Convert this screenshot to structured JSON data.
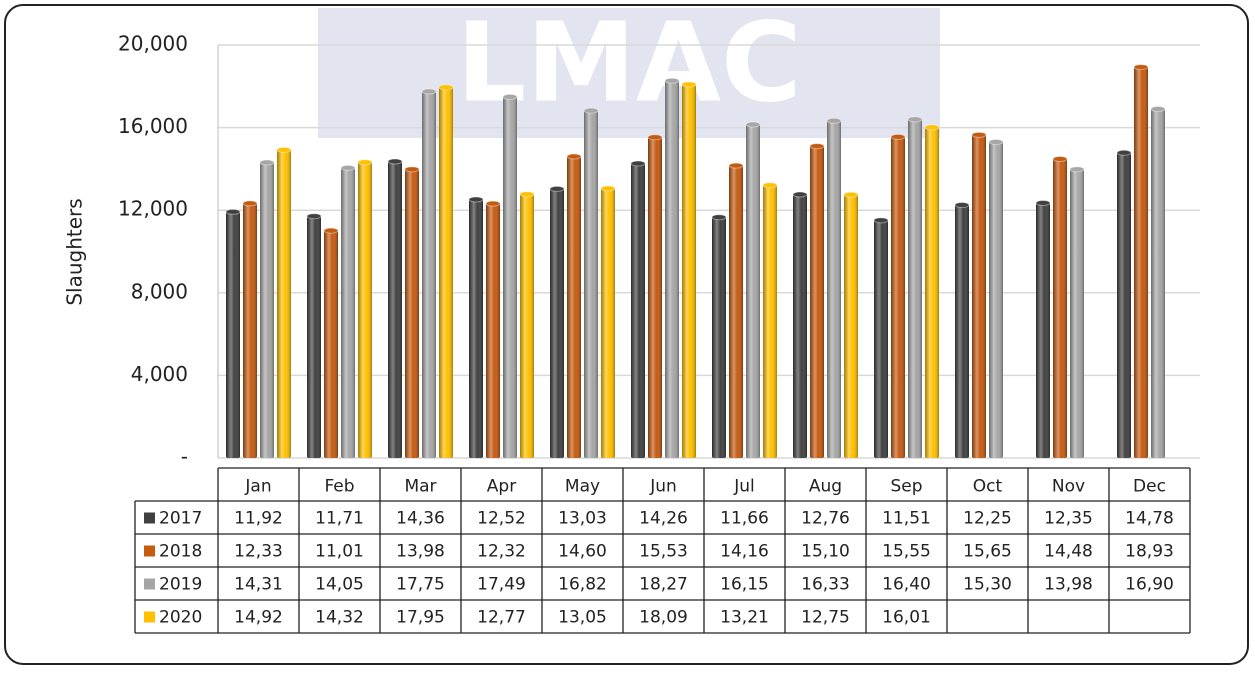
{
  "chart_data": {
    "type": "bar",
    "watermark": "LMAC",
    "y_axis_label": "Slaughters",
    "categories": [
      "Jan",
      "Feb",
      "Mar",
      "Apr",
      "May",
      "Jun",
      "Jul",
      "Aug",
      "Sep",
      "Oct",
      "Nov",
      "Dec"
    ],
    "series": [
      {
        "name": "2017",
        "color": "#404040",
        "values": [
          11920,
          11710,
          14360,
          12520,
          13030,
          14260,
          11660,
          12760,
          11510,
          12250,
          12350,
          14780
        ],
        "value_labels": [
          "11,92",
          "11,71",
          "14,36",
          "12,52",
          "13,03",
          "14,26",
          "11,66",
          "12,76",
          "11,51",
          "12,25",
          "12,35",
          "14,78"
        ]
      },
      {
        "name": "2018",
        "color": "#c55a11",
        "values": [
          12330,
          11010,
          13980,
          12320,
          14600,
          15530,
          14160,
          15100,
          15550,
          15650,
          14480,
          18930
        ],
        "value_labels": [
          "12,33",
          "11,01",
          "13,98",
          "12,32",
          "14,60",
          "15,53",
          "14,16",
          "15,10",
          "15,55",
          "15,65",
          "14,48",
          "18,93"
        ]
      },
      {
        "name": "2019",
        "color": "#a6a6a6",
        "values": [
          14310,
          14050,
          17750,
          17490,
          16820,
          18270,
          16150,
          16330,
          16400,
          15300,
          13980,
          16900
        ],
        "value_labels": [
          "14,31",
          "14,05",
          "17,75",
          "17,49",
          "16,82",
          "18,27",
          "16,15",
          "16,33",
          "16,40",
          "15,30",
          "13,98",
          "16,90"
        ]
      },
      {
        "name": "2020",
        "color": "#ffc000",
        "values": [
          14920,
          14320,
          17950,
          12770,
          13050,
          18090,
          13210,
          12750,
          16010,
          null,
          null,
          null
        ],
        "value_labels": [
          "14,92",
          "14,32",
          "17,95",
          "12,77",
          "13,05",
          "18,09",
          "13,21",
          "12,75",
          "16,01",
          null,
          null,
          null
        ]
      }
    ],
    "ylim": [
      0,
      20000
    ],
    "yticks": [
      {
        "value": 0,
        "label": "-"
      },
      {
        "value": 4000,
        "label": "4,000"
      },
      {
        "value": 8000,
        "label": "8,000"
      },
      {
        "value": 12000,
        "label": "12,000"
      },
      {
        "value": 16000,
        "label": "16,000"
      },
      {
        "value": 20000,
        "label": "20,000"
      }
    ],
    "grid": true,
    "data_table": true
  }
}
